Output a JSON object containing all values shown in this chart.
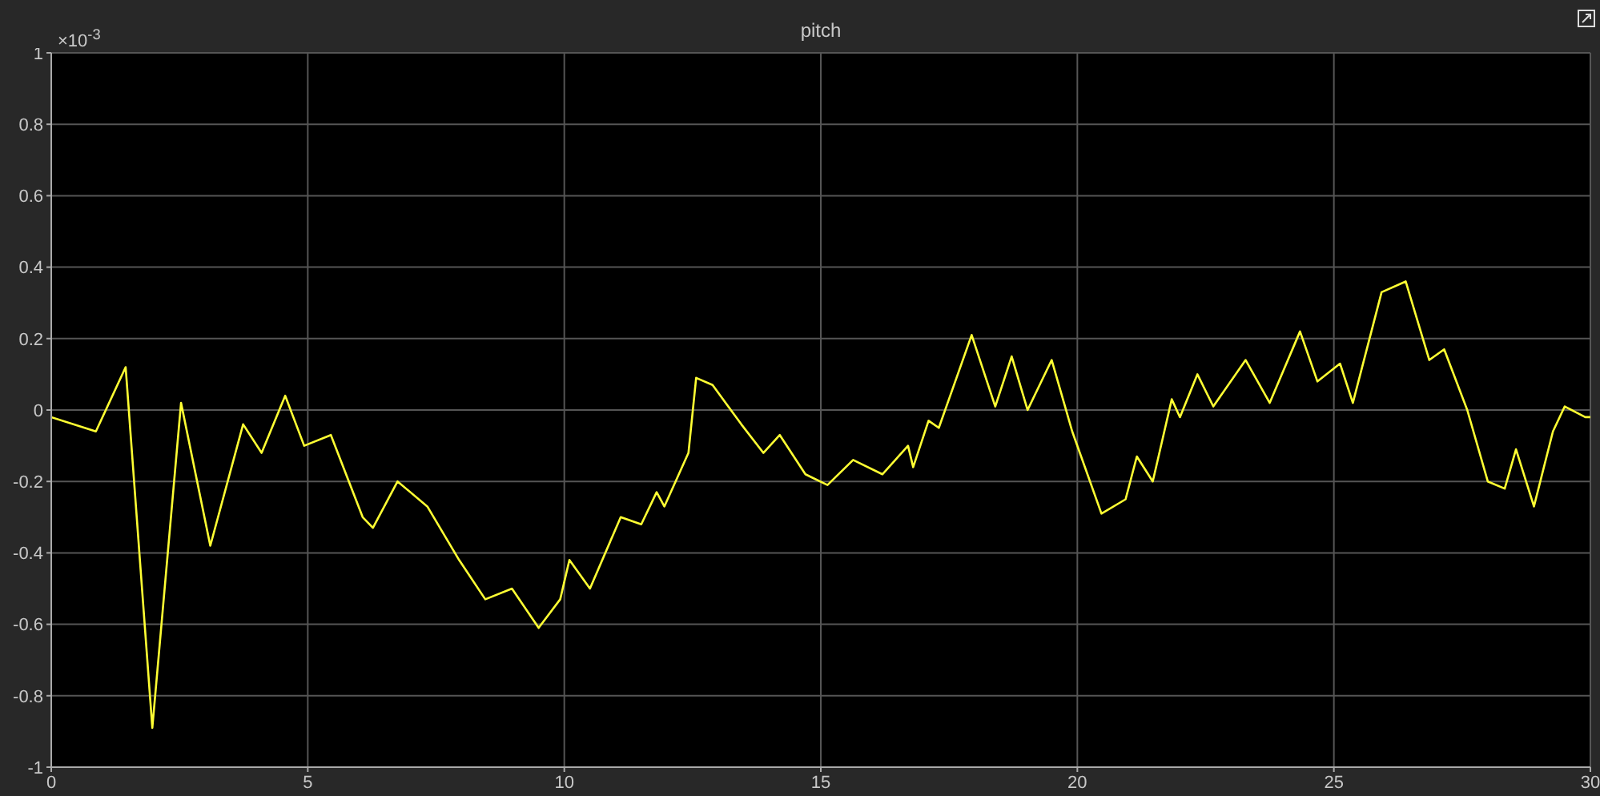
{
  "chart_data": {
    "type": "line",
    "title": "pitch",
    "annotations": [
      "×10$^{-3}$"
    ],
    "x": [
      0,
      0.87,
      1.45,
      1.97,
      2.53,
      3.1,
      3.74,
      4.1,
      4.56,
      4.93,
      5.45,
      6.07,
      6.27,
      6.75,
      7.33,
      7.95,
      8.46,
      8.98,
      9.5,
      9.92,
      10.1,
      10.5,
      11.1,
      11.5,
      11.8,
      11.95,
      12.42,
      12.57,
      12.89,
      13.45,
      13.88,
      14.2,
      14.7,
      15.13,
      15.63,
      16.2,
      16.7,
      16.8,
      17.1,
      17.3,
      17.94,
      18.4,
      18.72,
      19.03,
      19.5,
      19.9,
      20.47,
      20.94,
      21.16,
      21.47,
      21.84,
      22.0,
      22.34,
      22.65,
      23.28,
      23.75,
      24.34,
      24.68,
      25.12,
      25.37,
      25.93,
      26.4,
      26.86,
      27.15,
      27.6,
      28.0,
      28.33,
      28.55,
      28.9,
      29.27,
      29.5,
      29.9,
      30
    ],
    "series": [
      {
        "color": "#ffff33",
        "values": [
          -0.02,
          -0.06,
          0.12,
          -0.89,
          0.02,
          -0.38,
          -0.04,
          -0.12,
          0.04,
          -0.1,
          -0.07,
          -0.3,
          -0.33,
          -0.2,
          -0.27,
          -0.42,
          -0.53,
          -0.5,
          -0.61,
          -0.53,
          -0.42,
          -0.5,
          -0.3,
          -0.32,
          -0.23,
          -0.27,
          -0.12,
          0.09,
          0.07,
          -0.04,
          -0.12,
          -0.07,
          -0.18,
          -0.21,
          -0.14,
          -0.18,
          -0.1,
          -0.16,
          -0.03,
          -0.05,
          0.21,
          0.01,
          0.15,
          0.0,
          0.14,
          -0.06,
          -0.29,
          -0.25,
          -0.13,
          -0.2,
          0.03,
          -0.02,
          0.1,
          0.01,
          0.14,
          0.02,
          0.22,
          0.08,
          0.13,
          0.02,
          0.33,
          0.36,
          0.14,
          0.17,
          0.0,
          -0.2,
          -0.22,
          -0.11,
          -0.27,
          -0.06,
          0.01,
          -0.02,
          -0.02
        ]
      }
    ],
    "xlim": [
      0,
      30
    ],
    "xticks": [
      0,
      5,
      10,
      15,
      20,
      25,
      30
    ],
    "ylim": [
      -1,
      1
    ],
    "yticks": [
      -1,
      -0.8,
      -0.6,
      -0.4,
      -0.2,
      0,
      0.2,
      0.4,
      0.6,
      0.8,
      1
    ],
    "grid": true,
    "marker": "none",
    "line_style": "solid"
  }
}
